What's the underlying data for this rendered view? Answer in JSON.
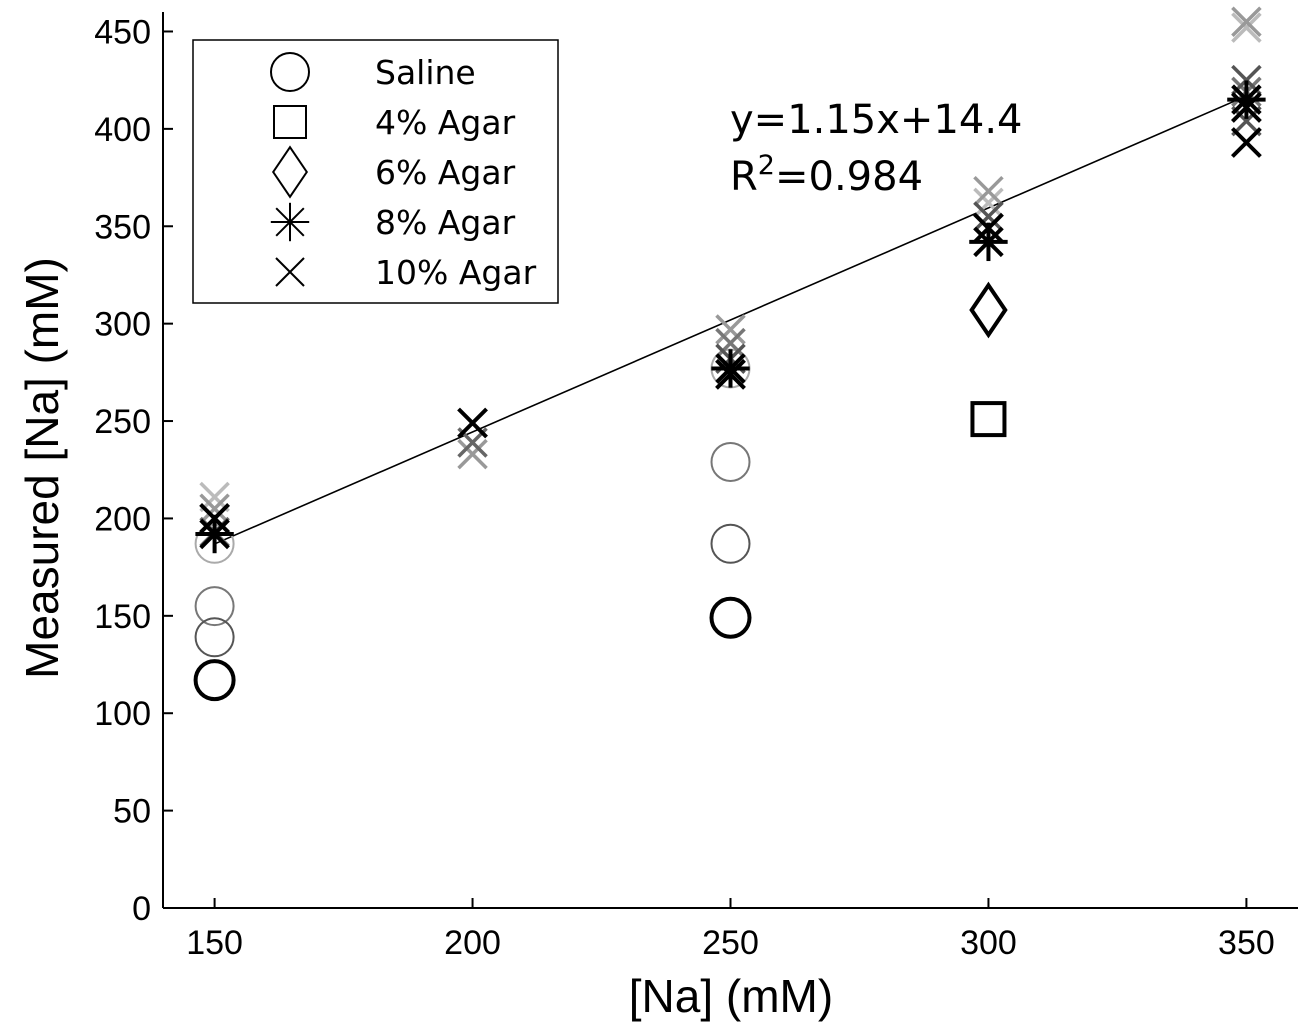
{
  "chart_data": {
    "type": "scatter",
    "xlabel": "[Na] (mM)",
    "ylabel": "Measured [Na] (mM)",
    "xlim": [
      140,
      360
    ],
    "ylim": [
      0,
      460
    ],
    "xticks": [
      150,
      200,
      250,
      300,
      350
    ],
    "yticks": [
      0,
      50,
      100,
      150,
      200,
      250,
      300,
      350,
      400,
      450
    ],
    "grid": false,
    "legend_position": "top-left",
    "legend": [
      {
        "label": "Saline",
        "marker": "circle"
      },
      {
        "label": "4% Agar",
        "marker": "square"
      },
      {
        "label": "6% Agar",
        "marker": "diamond"
      },
      {
        "label": "8% Agar",
        "marker": "asterisk"
      },
      {
        "label": "10% Agar",
        "marker": "x"
      }
    ],
    "fit": {
      "slope": 1.15,
      "intercept": 14.4,
      "x_range": [
        150,
        350
      ]
    },
    "annotation": {
      "equation": "y=1.15x+14.4",
      "r2_prefix": "R",
      "r2_sup": "2",
      "r2_value": "=0.984"
    },
    "points": [
      {
        "series": "Saline",
        "x": 150,
        "y": 117,
        "shade": "#000000"
      },
      {
        "series": "Saline",
        "x": 150,
        "y": 139,
        "shade": "#555555"
      },
      {
        "series": "Saline",
        "x": 150,
        "y": 155,
        "shade": "#777777"
      },
      {
        "series": "Saline",
        "x": 150,
        "y": 187,
        "shade": "#aaaaaa"
      },
      {
        "series": "Saline",
        "x": 250,
        "y": 149,
        "shade": "#000000"
      },
      {
        "series": "Saline",
        "x": 250,
        "y": 187,
        "shade": "#555555"
      },
      {
        "series": "Saline",
        "x": 250,
        "y": 229,
        "shade": "#777777"
      },
      {
        "series": "Saline",
        "x": 250,
        "y": 277,
        "shade": "#aaaaaa"
      },
      {
        "series": "4% Agar",
        "x": 300,
        "y": 251,
        "shade": "#000000"
      },
      {
        "series": "6% Agar",
        "x": 300,
        "y": 307,
        "shade": "#000000"
      },
      {
        "series": "8% Agar",
        "x": 150,
        "y": 192,
        "shade": "#000000"
      },
      {
        "series": "8% Agar",
        "x": 250,
        "y": 277,
        "shade": "#000000"
      },
      {
        "series": "8% Agar",
        "x": 300,
        "y": 342,
        "shade": "#000000"
      },
      {
        "series": "8% Agar",
        "x": 350,
        "y": 415,
        "shade": "#000000"
      },
      {
        "series": "10% Agar",
        "x": 150,
        "y": 211,
        "shade": "#bbbbbb"
      },
      {
        "series": "10% Agar",
        "x": 150,
        "y": 205,
        "shade": "#999999"
      },
      {
        "series": "10% Agar",
        "x": 150,
        "y": 200,
        "shade": "#000000"
      },
      {
        "series": "10% Agar",
        "x": 150,
        "y": 193,
        "shade": "#666666"
      },
      {
        "series": "10% Agar",
        "x": 200,
        "y": 249,
        "shade": "#000000"
      },
      {
        "series": "10% Agar",
        "x": 200,
        "y": 239,
        "shade": "#666666"
      },
      {
        "series": "10% Agar",
        "x": 200,
        "y": 233,
        "shade": "#999999"
      },
      {
        "series": "10% Agar",
        "x": 250,
        "y": 297,
        "shade": "#999999"
      },
      {
        "series": "10% Agar",
        "x": 250,
        "y": 290,
        "shade": "#777777"
      },
      {
        "series": "10% Agar",
        "x": 250,
        "y": 282,
        "shade": "#555555"
      },
      {
        "series": "10% Agar",
        "x": 250,
        "y": 274,
        "shade": "#000000"
      },
      {
        "series": "10% Agar",
        "x": 300,
        "y": 368,
        "shade": "#999999"
      },
      {
        "series": "10% Agar",
        "x": 300,
        "y": 362,
        "shade": "#bbbbbb"
      },
      {
        "series": "10% Agar",
        "x": 300,
        "y": 355,
        "shade": "#555555"
      },
      {
        "series": "10% Agar",
        "x": 300,
        "y": 349,
        "shade": "#000000"
      },
      {
        "series": "10% Agar",
        "x": 350,
        "y": 455,
        "shade": "#999999"
      },
      {
        "series": "10% Agar",
        "x": 350,
        "y": 452,
        "shade": "#bbbbbb"
      },
      {
        "series": "10% Agar",
        "x": 350,
        "y": 425,
        "shade": "#555555"
      },
      {
        "series": "10% Agar",
        "x": 350,
        "y": 419,
        "shade": "#777777"
      },
      {
        "series": "10% Agar",
        "x": 350,
        "y": 411,
        "shade": "#000000"
      },
      {
        "series": "10% Agar",
        "x": 350,
        "y": 404,
        "shade": "#555555"
      },
      {
        "series": "10% Agar",
        "x": 350,
        "y": 393,
        "shade": "#000000"
      }
    ]
  }
}
